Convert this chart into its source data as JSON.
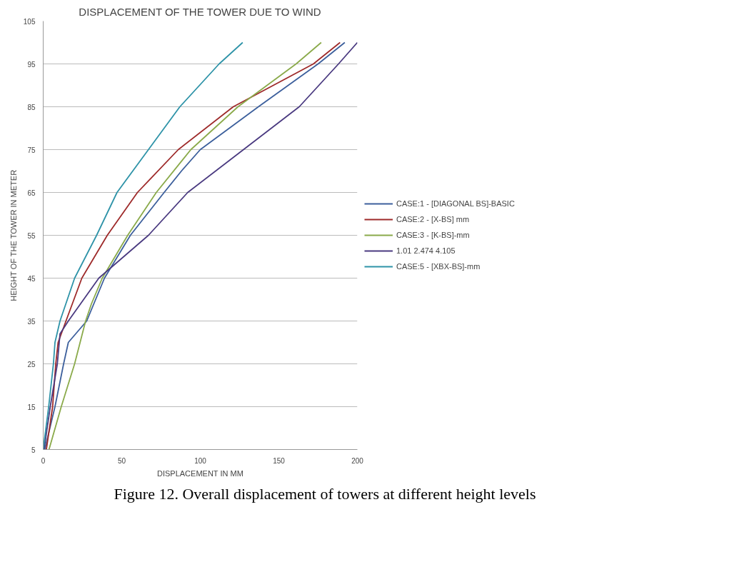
{
  "chart_data": {
    "type": "line",
    "title": "DISPLACEMENT OF THE TOWER DUE TO WIND",
    "xlabel": "DISPLACEMENT IN MM",
    "ylabel": "HEIGHT OF THE TOWER IN METER",
    "xlim": [
      0,
      200
    ],
    "xticks": [
      0,
      50,
      100,
      150,
      200
    ],
    "ylim": [
      5,
      105
    ],
    "yticks": [
      5,
      15,
      25,
      35,
      45,
      55,
      65,
      75,
      85,
      95,
      105
    ],
    "grid": "y",
    "legend": "right",
    "series": [
      {
        "name": "CASE:1 - [DIAGONAL BS]-BASIC",
        "color": "#3c5f9c",
        "x": [
          1,
          7.5,
          13,
          16,
          27.7,
          39,
          55.5,
          77,
          88,
          100,
          137,
          175,
          192
        ],
        "values": [
          5,
          15,
          25,
          30,
          35,
          45,
          55,
          65,
          70,
          75,
          85,
          95,
          100
        ]
      },
      {
        "name": "CASE:2 - [X-BS] mm",
        "color": "#9e2a2a",
        "x": [
          2,
          6,
          8,
          9.5,
          14.5,
          24.6,
          40.8,
          60,
          86,
          121,
          172,
          189
        ],
        "values": [
          5,
          15,
          25,
          30,
          35,
          45,
          55,
          65,
          75,
          85,
          95,
          100
        ]
      },
      {
        "name": "CASE:3 - [K-BS]-mm",
        "color": "#8aaa4a",
        "x": [
          3.7,
          11.5,
          20,
          27,
          30.7,
          37.6,
          53.8,
          72,
          94,
          124,
          161,
          177
        ],
        "values": [
          5,
          15,
          25,
          35,
          39,
          45,
          55,
          65,
          75,
          85,
          95,
          100
        ]
      },
      {
        "name": "1.01 2.474 4.105",
        "color": "#4a3a80",
        "x": [
          0.5,
          4.5,
          9,
          10.7,
          16,
          35.4,
          67,
          92,
          127.5,
          163,
          188,
          200
        ],
        "values": [
          5,
          15,
          25,
          32,
          35,
          45,
          55,
          65,
          75,
          85,
          95,
          100
        ]
      },
      {
        "name": "CASE:5 - [XBX-BS]-mm",
        "color": "#2e93a8",
        "x": [
          0,
          3.5,
          6.5,
          7.5,
          10.7,
          20,
          34,
          47,
          67,
          87,
          112,
          127
        ],
        "values": [
          5,
          15,
          25,
          30,
          35,
          45,
          55,
          65,
          75,
          85,
          95,
          100
        ]
      }
    ],
    "annotations": [
      "Figure 12. Overall displacement of towers at different height levels"
    ]
  }
}
